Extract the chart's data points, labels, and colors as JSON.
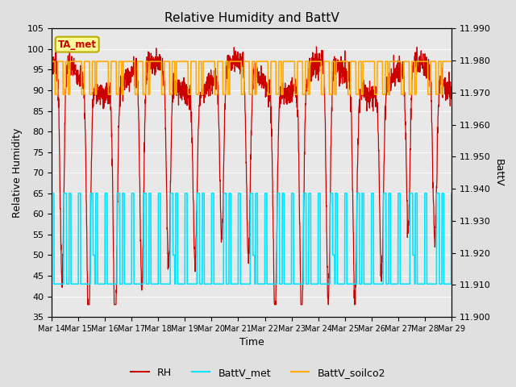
{
  "title": "Relative Humidity and BattV",
  "xlabel": "Time",
  "ylabel_left": "Relative Humidity",
  "ylabel_right": "BattV",
  "ylim_left": [
    35,
    105
  ],
  "ylim_right": [
    11.9,
    11.99
  ],
  "yticks_left": [
    35,
    40,
    45,
    50,
    55,
    60,
    65,
    70,
    75,
    80,
    85,
    90,
    95,
    100,
    105
  ],
  "yticks_right": [
    11.9,
    11.91,
    11.92,
    11.93,
    11.94,
    11.95,
    11.96,
    11.97,
    11.98,
    11.99
  ],
  "x_tick_labels": [
    "Mar 14",
    "Mar 15",
    "Mar 16",
    "Mar 17",
    "Mar 18",
    "Mar 19",
    "Mar 20",
    "Mar 21",
    "Mar 22",
    "Mar 23",
    "Mar 24",
    "Mar 25",
    "Mar 26",
    "Mar 27",
    "Mar 28",
    "Mar 29"
  ],
  "legend_labels": [
    "RH",
    "BattV_met",
    "BattV_soilco2"
  ],
  "line_colors": {
    "RH": "#cc0000",
    "BattV_met": "#00e5ff",
    "BattV_soilco2": "#ffaa00"
  },
  "background_color": "#e0e0e0",
  "plot_bg_color": "#e8e8e8",
  "annotation_text": "TA_met",
  "annotation_color": "#cc0000",
  "annotation_bg": "#ffff99",
  "annotation_border": "#bbaa00",
  "batt_met_high": 65,
  "batt_met_low": 43,
  "batt_soilco2_high": 97,
  "batt_soilco2_low": 89,
  "n_days": 15,
  "pts_per_day": 144
}
